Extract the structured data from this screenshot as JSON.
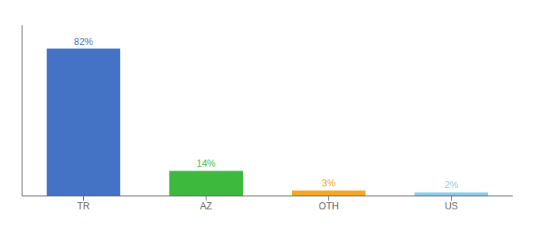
{
  "chart_data": {
    "type": "bar",
    "categories": [
      "TR",
      "AZ",
      "OTH",
      "US"
    ],
    "values": [
      82,
      14,
      3,
      2
    ],
    "value_labels": [
      "82%",
      "14%",
      "3%",
      "2%"
    ],
    "colors": [
      "#4472c4",
      "#3dba3d",
      "#f5a623",
      "#87ceeb"
    ],
    "ylim": [
      0,
      95
    ],
    "data_labels": true,
    "grid": false,
    "tick_labels": "x"
  }
}
